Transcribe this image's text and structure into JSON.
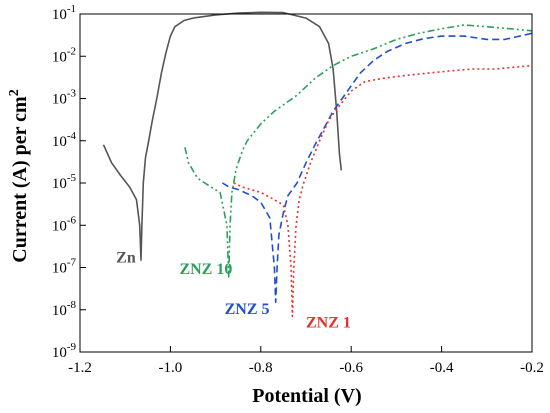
{
  "chart_data": {
    "type": "line",
    "title": "",
    "xlabel": "Potential (V)",
    "ylabel_prefix": "Current (A) per cm",
    "ylabel_sup": "2",
    "xlim": [
      -1.2,
      -0.2
    ],
    "ylim_log10": [
      -9,
      -1
    ],
    "y_scale": "log",
    "grid": false,
    "legend": "none",
    "x_ticks": [
      {
        "value": -1.2,
        "label": "-1.2"
      },
      {
        "value": -1.0,
        "label": "-1.0"
      },
      {
        "value": -0.8,
        "label": "-0.8"
      },
      {
        "value": -0.6,
        "label": "-0.6"
      },
      {
        "value": -0.4,
        "label": "-0.4"
      },
      {
        "value": -0.2,
        "label": "-0.2"
      }
    ],
    "y_ticks": [
      {
        "value": 1e-09,
        "base": "10",
        "exp": "-9"
      },
      {
        "value": 1e-08,
        "base": "10",
        "exp": "-8"
      },
      {
        "value": 1e-07,
        "base": "10",
        "exp": "-7"
      },
      {
        "value": 1e-06,
        "base": "10",
        "exp": "-6"
      },
      {
        "value": 1e-05,
        "base": "10",
        "exp": "-5"
      },
      {
        "value": 0.0001,
        "base": "10",
        "exp": "-4"
      },
      {
        "value": 0.001,
        "base": "10",
        "exp": "-3"
      },
      {
        "value": 0.01,
        "base": "10",
        "exp": "-2"
      },
      {
        "value": 0.1,
        "base": "10",
        "exp": "-1"
      }
    ],
    "series": [
      {
        "name": "Zn",
        "color": "#555555",
        "dash": "solid",
        "label_at": {
          "x": -1.12,
          "y": 1.3e-07
        },
        "points": [
          [
            -1.148,
            8e-05
          ],
          [
            -1.13,
            3e-05
          ],
          [
            -1.11,
            1.5e-05
          ],
          [
            -1.09,
            8e-06
          ],
          [
            -1.075,
            4e-06
          ],
          [
            -1.068,
            1e-06
          ],
          [
            -1.065,
            1.5e-07
          ],
          [
            -1.063,
            1e-06
          ],
          [
            -1.06,
            1e-05
          ],
          [
            -1.055,
            4e-05
          ],
          [
            -1.048,
            0.0001
          ],
          [
            -1.04,
            0.0003
          ],
          [
            -1.03,
            0.001
          ],
          [
            -1.02,
            0.004
          ],
          [
            -1.01,
            0.012
          ],
          [
            -1.0,
            0.03
          ],
          [
            -0.99,
            0.05
          ],
          [
            -0.97,
            0.07
          ],
          [
            -0.95,
            0.08
          ],
          [
            -0.9,
            0.095
          ],
          [
            -0.85,
            0.105
          ],
          [
            -0.8,
            0.11
          ],
          [
            -0.75,
            0.108
          ],
          [
            -0.7,
            0.08
          ],
          [
            -0.67,
            0.05
          ],
          [
            -0.65,
            0.02
          ],
          [
            -0.64,
            0.005
          ],
          [
            -0.632,
            0.0005
          ],
          [
            -0.626,
            5e-05
          ],
          [
            -0.622,
            2e-05
          ]
        ]
      },
      {
        "name": "ZNZ 10",
        "color": "#2aa05a",
        "dash": "dashdotdot",
        "label_at": {
          "x": -0.98,
          "y": 7e-08
        },
        "points": [
          [
            -0.968,
            7e-05
          ],
          [
            -0.96,
            3e-05
          ],
          [
            -0.94,
            1.3e-05
          ],
          [
            -0.91,
            8e-06
          ],
          [
            -0.89,
            6e-06
          ],
          [
            -0.875,
            1e-06
          ],
          [
            -0.871,
            6e-08
          ],
          [
            -0.868,
            1e-06
          ],
          [
            -0.864,
            6e-06
          ],
          [
            -0.86,
            1e-05
          ],
          [
            -0.855,
            2e-05
          ],
          [
            -0.85,
            3e-05
          ],
          [
            -0.84,
            6e-05
          ],
          [
            -0.83,
            0.0001
          ],
          [
            -0.8,
            0.00025
          ],
          [
            -0.77,
            0.0005
          ],
          [
            -0.72,
            0.0012
          ],
          [
            -0.68,
            0.003
          ],
          [
            -0.64,
            0.006
          ],
          [
            -0.6,
            0.01
          ],
          [
            -0.55,
            0.015
          ],
          [
            -0.5,
            0.025
          ],
          [
            -0.45,
            0.035
          ],
          [
            -0.4,
            0.045
          ],
          [
            -0.35,
            0.055
          ],
          [
            -0.3,
            0.05
          ],
          [
            -0.25,
            0.045
          ],
          [
            -0.2,
            0.04
          ]
        ]
      },
      {
        "name": "ZNZ 5",
        "color": "#1f4fd0",
        "dash": "dash",
        "label_at": {
          "x": -0.88,
          "y": 8e-09
        },
        "points": [
          [
            -0.885,
            1e-05
          ],
          [
            -0.87,
            8e-06
          ],
          [
            -0.85,
            7e-06
          ],
          [
            -0.82,
            5e-06
          ],
          [
            -0.8,
            3.5e-06
          ],
          [
            -0.78,
            1.5e-06
          ],
          [
            -0.77,
            1e-07
          ],
          [
            -0.767,
            1.5e-08
          ],
          [
            -0.764,
            1e-07
          ],
          [
            -0.76,
            6e-07
          ],
          [
            -0.75,
            2e-06
          ],
          [
            -0.74,
            5e-06
          ],
          [
            -0.72,
            1e-05
          ],
          [
            -0.7,
            3e-05
          ],
          [
            -0.68,
            8e-05
          ],
          [
            -0.66,
            0.0002
          ],
          [
            -0.64,
            0.0005
          ],
          [
            -0.62,
            0.001
          ],
          [
            -0.6,
            0.002
          ],
          [
            -0.58,
            0.004
          ],
          [
            -0.55,
            0.008
          ],
          [
            -0.52,
            0.013
          ],
          [
            -0.48,
            0.02
          ],
          [
            -0.44,
            0.026
          ],
          [
            -0.4,
            0.03
          ],
          [
            -0.35,
            0.03
          ],
          [
            -0.3,
            0.025
          ],
          [
            -0.26,
            0.025
          ],
          [
            -0.2,
            0.035
          ]
        ]
      },
      {
        "name": "ZNZ 1",
        "color": "#e8302a",
        "dash": "dot",
        "label_at": {
          "x": -0.7,
          "y": 3.8e-09
        },
        "points": [
          [
            -0.86,
            1e-05
          ],
          [
            -0.84,
            8e-06
          ],
          [
            -0.8,
            6e-06
          ],
          [
            -0.77,
            4e-06
          ],
          [
            -0.75,
            3e-06
          ],
          [
            -0.74,
            1e-06
          ],
          [
            -0.733,
            1e-07
          ],
          [
            -0.73,
            7e-09
          ],
          [
            -0.727,
            1e-07
          ],
          [
            -0.722,
            1e-06
          ],
          [
            -0.715,
            4e-06
          ],
          [
            -0.705,
            1e-05
          ],
          [
            -0.69,
            3e-05
          ],
          [
            -0.67,
            0.0001
          ],
          [
            -0.65,
            0.0003
          ],
          [
            -0.63,
            0.0006
          ],
          [
            -0.6,
            0.0015
          ],
          [
            -0.57,
            0.0025
          ],
          [
            -0.53,
            0.003
          ],
          [
            -0.48,
            0.0035
          ],
          [
            -0.43,
            0.004
          ],
          [
            -0.38,
            0.0045
          ],
          [
            -0.33,
            0.005
          ],
          [
            -0.28,
            0.005
          ],
          [
            -0.24,
            0.0055
          ],
          [
            -0.2,
            0.006
          ]
        ]
      }
    ]
  }
}
